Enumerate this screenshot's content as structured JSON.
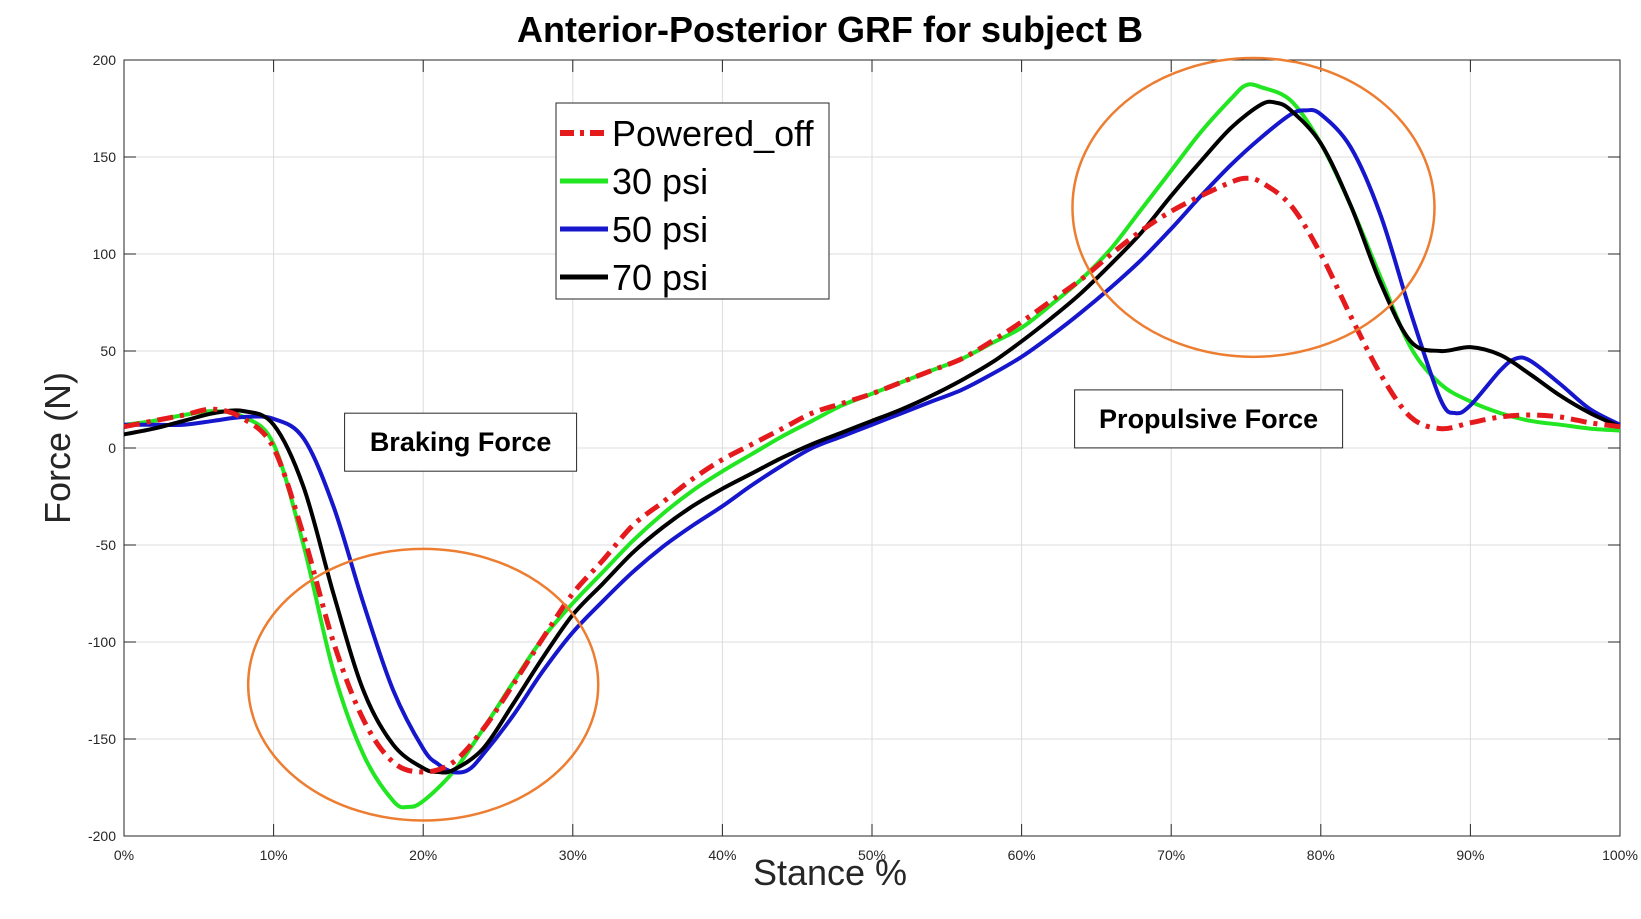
{
  "chart_data": {
    "type": "line",
    "title": "Anterior-Posterior GRF for subject B",
    "xlabel": "Stance %",
    "ylabel": "Force (N)",
    "xlim": [
      0,
      100
    ],
    "ylim": [
      -200,
      200
    ],
    "x_ticks": [
      0,
      10,
      20,
      30,
      40,
      50,
      60,
      70,
      80,
      90,
      100
    ],
    "x_tick_labels": [
      "0%",
      "10%",
      "20%",
      "30%",
      "40%",
      "50%",
      "60%",
      "70%",
      "80%",
      "90%",
      "100%"
    ],
    "y_ticks": [
      200,
      150,
      100,
      50,
      0,
      -50,
      -100,
      -150,
      -200
    ],
    "y_tick_labels": [
      "200",
      "150",
      "100",
      "50",
      "0",
      "-50",
      "-100",
      "-150",
      "-200"
    ],
    "grid": true,
    "legend_position": "top-center-left",
    "series": [
      {
        "name": "Powered_off",
        "color": "#e41a1c",
        "style": "dash-dot",
        "points": [
          [
            0,
            11
          ],
          [
            2,
            14
          ],
          [
            4,
            17
          ],
          [
            6,
            20
          ],
          [
            8,
            15
          ],
          [
            10,
            0
          ],
          [
            12,
            -45
          ],
          [
            14,
            -100
          ],
          [
            16,
            -140
          ],
          [
            18,
            -162
          ],
          [
            20,
            -167
          ],
          [
            22,
            -162
          ],
          [
            24,
            -145
          ],
          [
            26,
            -122
          ],
          [
            28,
            -98
          ],
          [
            30,
            -75
          ],
          [
            32,
            -58
          ],
          [
            34,
            -40
          ],
          [
            36,
            -28
          ],
          [
            38,
            -16
          ],
          [
            40,
            -6
          ],
          [
            42,
            2
          ],
          [
            44,
            10
          ],
          [
            46,
            18
          ],
          [
            48,
            23
          ],
          [
            50,
            28
          ],
          [
            52,
            34
          ],
          [
            54,
            40
          ],
          [
            56,
            46
          ],
          [
            58,
            55
          ],
          [
            60,
            65
          ],
          [
            62,
            76
          ],
          [
            64,
            87
          ],
          [
            66,
            100
          ],
          [
            68,
            112
          ],
          [
            70,
            122
          ],
          [
            72,
            130
          ],
          [
            74,
            137
          ],
          [
            75,
            139
          ],
          [
            76,
            137
          ],
          [
            78,
            125
          ],
          [
            80,
            100
          ],
          [
            82,
            68
          ],
          [
            84,
            38
          ],
          [
            86,
            16
          ],
          [
            88,
            10
          ],
          [
            90,
            13
          ],
          [
            92,
            16
          ],
          [
            94,
            17
          ],
          [
            96,
            16
          ],
          [
            98,
            13
          ],
          [
            100,
            11
          ]
        ]
      },
      {
        "name": "30 psi",
        "color": "#22e622",
        "style": "solid",
        "points": [
          [
            0,
            12
          ],
          [
            2,
            14
          ],
          [
            4,
            17
          ],
          [
            6,
            19
          ],
          [
            8,
            16
          ],
          [
            10,
            2
          ],
          [
            12,
            -50
          ],
          [
            14,
            -115
          ],
          [
            16,
            -158
          ],
          [
            18,
            -182
          ],
          [
            19,
            -185
          ],
          [
            20,
            -182
          ],
          [
            22,
            -167
          ],
          [
            24,
            -145
          ],
          [
            26,
            -121
          ],
          [
            28,
            -98
          ],
          [
            30,
            -80
          ],
          [
            32,
            -64
          ],
          [
            34,
            -48
          ],
          [
            36,
            -34
          ],
          [
            38,
            -22
          ],
          [
            40,
            -12
          ],
          [
            42,
            -3
          ],
          [
            44,
            6
          ],
          [
            46,
            14
          ],
          [
            48,
            22
          ],
          [
            50,
            28
          ],
          [
            52,
            34
          ],
          [
            54,
            40
          ],
          [
            56,
            46
          ],
          [
            58,
            54
          ],
          [
            60,
            62
          ],
          [
            62,
            74
          ],
          [
            64,
            87
          ],
          [
            66,
            103
          ],
          [
            68,
            123
          ],
          [
            70,
            143
          ],
          [
            72,
            163
          ],
          [
            74,
            180
          ],
          [
            75,
            187
          ],
          [
            76,
            186
          ],
          [
            78,
            179
          ],
          [
            80,
            157
          ],
          [
            82,
            125
          ],
          [
            84,
            88
          ],
          [
            86,
            52
          ],
          [
            88,
            33
          ],
          [
            90,
            24
          ],
          [
            92,
            18
          ],
          [
            94,
            14
          ],
          [
            96,
            12
          ],
          [
            98,
            10
          ],
          [
            100,
            9
          ]
        ]
      },
      {
        "name": "50 psi",
        "color": "#1616cc",
        "style": "solid",
        "points": [
          [
            0,
            12
          ],
          [
            2,
            12
          ],
          [
            4,
            12
          ],
          [
            6,
            14
          ],
          [
            8,
            16
          ],
          [
            10,
            15
          ],
          [
            12,
            5
          ],
          [
            14,
            -30
          ],
          [
            16,
            -80
          ],
          [
            18,
            -125
          ],
          [
            20,
            -155
          ],
          [
            21,
            -163
          ],
          [
            22,
            -167
          ],
          [
            23,
            -166
          ],
          [
            24,
            -158
          ],
          [
            26,
            -138
          ],
          [
            28,
            -115
          ],
          [
            30,
            -95
          ],
          [
            32,
            -79
          ],
          [
            34,
            -64
          ],
          [
            36,
            -51
          ],
          [
            38,
            -40
          ],
          [
            40,
            -30
          ],
          [
            42,
            -19
          ],
          [
            44,
            -9
          ],
          [
            46,
            0
          ],
          [
            48,
            6
          ],
          [
            50,
            12
          ],
          [
            52,
            18
          ],
          [
            54,
            24
          ],
          [
            56,
            30
          ],
          [
            58,
            38
          ],
          [
            60,
            47
          ],
          [
            62,
            58
          ],
          [
            64,
            70
          ],
          [
            66,
            83
          ],
          [
            68,
            97
          ],
          [
            70,
            113
          ],
          [
            72,
            130
          ],
          [
            74,
            146
          ],
          [
            76,
            160
          ],
          [
            78,
            172
          ],
          [
            79,
            174
          ],
          [
            80,
            172
          ],
          [
            82,
            155
          ],
          [
            84,
            120
          ],
          [
            86,
            70
          ],
          [
            88,
            25
          ],
          [
            89,
            18
          ],
          [
            90,
            22
          ],
          [
            92,
            40
          ],
          [
            93,
            46
          ],
          [
            94,
            45
          ],
          [
            96,
            33
          ],
          [
            98,
            20
          ],
          [
            100,
            12
          ]
        ]
      },
      {
        "name": "70 psi",
        "color": "#000000",
        "style": "solid",
        "points": [
          [
            0,
            7
          ],
          [
            2,
            10
          ],
          [
            4,
            14
          ],
          [
            6,
            18
          ],
          [
            8,
            19
          ],
          [
            10,
            12
          ],
          [
            12,
            -20
          ],
          [
            14,
            -75
          ],
          [
            16,
            -125
          ],
          [
            18,
            -153
          ],
          [
            20,
            -165
          ],
          [
            21,
            -167
          ],
          [
            22,
            -166
          ],
          [
            24,
            -155
          ],
          [
            26,
            -132
          ],
          [
            28,
            -108
          ],
          [
            30,
            -86
          ],
          [
            32,
            -70
          ],
          [
            34,
            -54
          ],
          [
            36,
            -41
          ],
          [
            38,
            -30
          ],
          [
            40,
            -21
          ],
          [
            42,
            -13
          ],
          [
            44,
            -5
          ],
          [
            46,
            2
          ],
          [
            48,
            8
          ],
          [
            50,
            14
          ],
          [
            52,
            20
          ],
          [
            54,
            27
          ],
          [
            56,
            35
          ],
          [
            58,
            44
          ],
          [
            60,
            55
          ],
          [
            62,
            67
          ],
          [
            64,
            80
          ],
          [
            66,
            95
          ],
          [
            68,
            111
          ],
          [
            70,
            130
          ],
          [
            72,
            148
          ],
          [
            74,
            165
          ],
          [
            76,
            177
          ],
          [
            77,
            178
          ],
          [
            78,
            174
          ],
          [
            80,
            157
          ],
          [
            82,
            125
          ],
          [
            84,
            85
          ],
          [
            86,
            55
          ],
          [
            88,
            50
          ],
          [
            90,
            52
          ],
          [
            92,
            48
          ],
          [
            94,
            38
          ],
          [
            96,
            27
          ],
          [
            98,
            18
          ],
          [
            100,
            11
          ]
        ]
      }
    ],
    "annotations": [
      {
        "text": "Braking Force",
        "x": 22.5,
        "y": 3
      },
      {
        "text": "Propulsive Force",
        "x": 72.5,
        "y": 15
      }
    ],
    "highlight_ellipses": [
      {
        "label": "braking-region",
        "cx": 20,
        "cy": -122,
        "rx": 11.7,
        "ry": 70
      },
      {
        "label": "propulsive-region",
        "cx": 75.5,
        "cy": 124,
        "rx": 12.1,
        "ry": 77
      }
    ],
    "highlight_color": "#ed7d31"
  }
}
